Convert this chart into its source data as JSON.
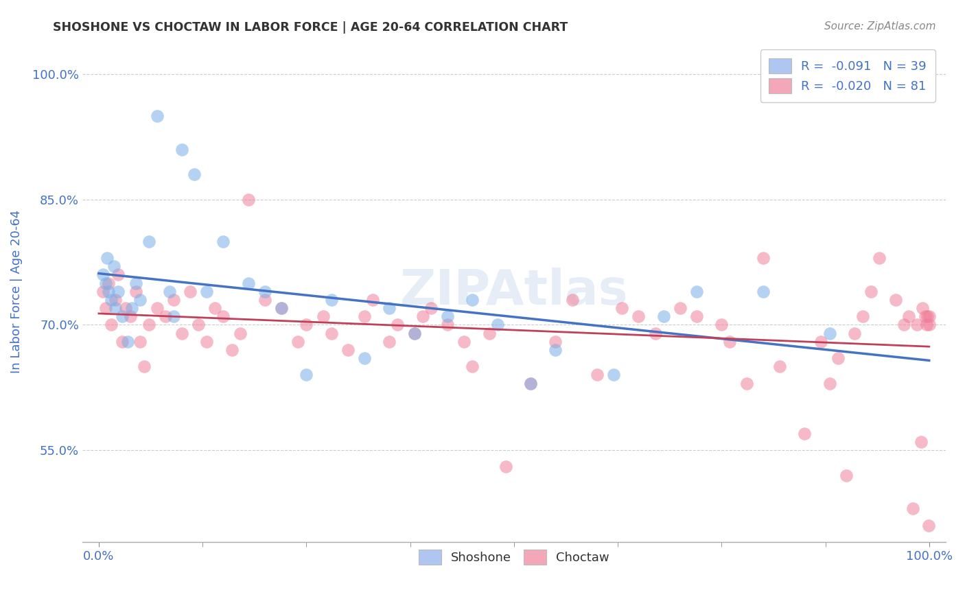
{
  "title": "SHOSHONE VS CHOCTAW IN LABOR FORCE | AGE 20-64 CORRELATION CHART",
  "source": "Source: ZipAtlas.com",
  "ylabel": "In Labor Force | Age 20-64",
  "watermark": "ZIPAtlas",
  "shoshone_color": "#7baee8",
  "choctaw_color": "#f08099",
  "shoshone_color_light": "#aec6f0",
  "choctaw_color_light": "#f4a7b9",
  "trendline_shoshone": "#4472c4",
  "trendline_choctaw": "#c0405a",
  "xlim": [
    -2,
    102
  ],
  "ylim": [
    44,
    104
  ],
  "background_color": "#ffffff",
  "grid_color": "#cccccc",
  "axis_label_color": "#4472c4",
  "title_color": "#333333",
  "shoshone_x": [
    0.5,
    0.8,
    1.0,
    1.2,
    1.5,
    1.8,
    2.0,
    2.3,
    2.8,
    3.5,
    4.0,
    4.5,
    5.0,
    6.0,
    7.0,
    8.5,
    9.0,
    10.0,
    11.5,
    13.0,
    15.0,
    18.0,
    20.0,
    22.0,
    25.0,
    28.0,
    32.0,
    35.0,
    38.0,
    42.0,
    45.0,
    48.0,
    52.0,
    55.0,
    62.0,
    68.0,
    72.0,
    80.0,
    88.0
  ],
  "shoshone_y": [
    76.0,
    75.0,
    78.0,
    74.0,
    73.0,
    77.0,
    72.0,
    74.0,
    71.0,
    68.0,
    72.0,
    75.0,
    73.0,
    80.0,
    95.0,
    74.0,
    71.0,
    91.0,
    88.0,
    74.0,
    80.0,
    75.0,
    74.0,
    72.0,
    64.0,
    73.0,
    66.0,
    72.0,
    69.0,
    71.0,
    73.0,
    70.0,
    63.0,
    67.0,
    64.0,
    71.0,
    74.0,
    74.0,
    69.0
  ],
  "choctaw_x": [
    0.5,
    0.8,
    1.2,
    1.5,
    2.0,
    2.3,
    2.8,
    3.2,
    3.8,
    4.5,
    5.0,
    5.5,
    6.0,
    7.0,
    8.0,
    9.0,
    10.0,
    11.0,
    12.0,
    13.0,
    14.0,
    15.0,
    16.0,
    17.0,
    18.0,
    20.0,
    22.0,
    24.0,
    25.0,
    27.0,
    28.0,
    30.0,
    32.0,
    33.0,
    35.0,
    36.0,
    38.0,
    39.0,
    40.0,
    42.0,
    44.0,
    45.0,
    47.0,
    49.0,
    52.0,
    55.0,
    57.0,
    60.0,
    63.0,
    65.0,
    67.0,
    70.0,
    72.0,
    75.0,
    76.0,
    78.0,
    80.0,
    82.0,
    85.0,
    87.0,
    88.0,
    89.0,
    90.0,
    91.0,
    92.0,
    93.0,
    94.0,
    95.0,
    96.0,
    97.0,
    97.5,
    98.0,
    98.5,
    99.0,
    99.2,
    99.5,
    99.7,
    99.8,
    99.9,
    100.0,
    100.0
  ],
  "choctaw_y": [
    74.0,
    72.0,
    75.0,
    70.0,
    73.0,
    76.0,
    68.0,
    72.0,
    71.0,
    74.0,
    68.0,
    65.0,
    70.0,
    72.0,
    71.0,
    73.0,
    69.0,
    74.0,
    70.0,
    68.0,
    72.0,
    71.0,
    67.0,
    69.0,
    85.0,
    73.0,
    72.0,
    68.0,
    70.0,
    71.0,
    69.0,
    67.0,
    71.0,
    73.0,
    68.0,
    70.0,
    69.0,
    71.0,
    72.0,
    70.0,
    68.0,
    65.0,
    69.0,
    53.0,
    63.0,
    68.0,
    73.0,
    64.0,
    72.0,
    71.0,
    69.0,
    72.0,
    71.0,
    70.0,
    68.0,
    63.0,
    78.0,
    65.0,
    57.0,
    68.0,
    63.0,
    66.0,
    52.0,
    69.0,
    71.0,
    74.0,
    78.0,
    100.0,
    73.0,
    70.0,
    71.0,
    48.0,
    70.0,
    56.0,
    72.0,
    71.0,
    70.0,
    71.0,
    46.0,
    71.0,
    70.0
  ]
}
